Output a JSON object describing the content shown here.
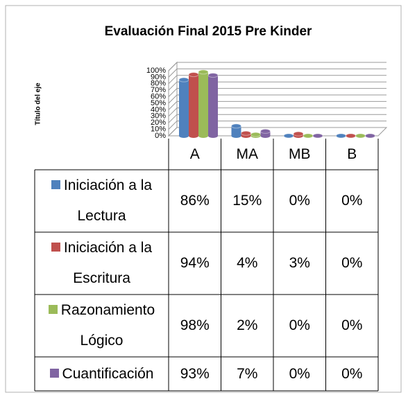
{
  "chart_data": {
    "type": "bar3d",
    "title": "Evaluación Final 2015 Pre Kinder",
    "y_axis_label": "Título del eje",
    "categories": [
      "A",
      "MA",
      "MB",
      "B"
    ],
    "series": [
      {
        "name": "Iniciación a la Lectura",
        "color": "#4f81bd",
        "values": [
          86,
          15,
          0,
          0
        ],
        "value_labels": [
          "86%",
          "15%",
          "0%",
          "0%"
        ]
      },
      {
        "name": "Iniciación a la Escritura",
        "color": "#c0504d",
        "values": [
          94,
          4,
          3,
          0
        ],
        "value_labels": [
          "94%",
          "4%",
          "3%",
          "0%"
        ]
      },
      {
        "name": "Razonamiento Lógico",
        "color": "#9bbb59",
        "values": [
          98,
          2,
          0,
          0
        ],
        "value_labels": [
          "98%",
          "2%",
          "0%",
          "0%"
        ]
      },
      {
        "name": "Cuantificación",
        "color": "#8064a2",
        "values": [
          93,
          7,
          0,
          0
        ],
        "value_labels": [
          "93%",
          "7%",
          "0%",
          "0%"
        ]
      }
    ],
    "ylim": [
      0,
      100
    ],
    "yticks": [
      {
        "value": 0,
        "label": "0%"
      },
      {
        "value": 10,
        "label": "10%"
      },
      {
        "value": 20,
        "label": "20%"
      },
      {
        "value": 30,
        "label": "30%"
      },
      {
        "value": 40,
        "label": "40%"
      },
      {
        "value": 50,
        "label": "50%"
      },
      {
        "value": 60,
        "label": "60%"
      },
      {
        "value": 70,
        "label": "70%"
      },
      {
        "value": 80,
        "label": "80%"
      },
      {
        "value": 90,
        "label": "90%"
      },
      {
        "value": 100,
        "label": "100%"
      }
    ],
    "grid": true
  }
}
